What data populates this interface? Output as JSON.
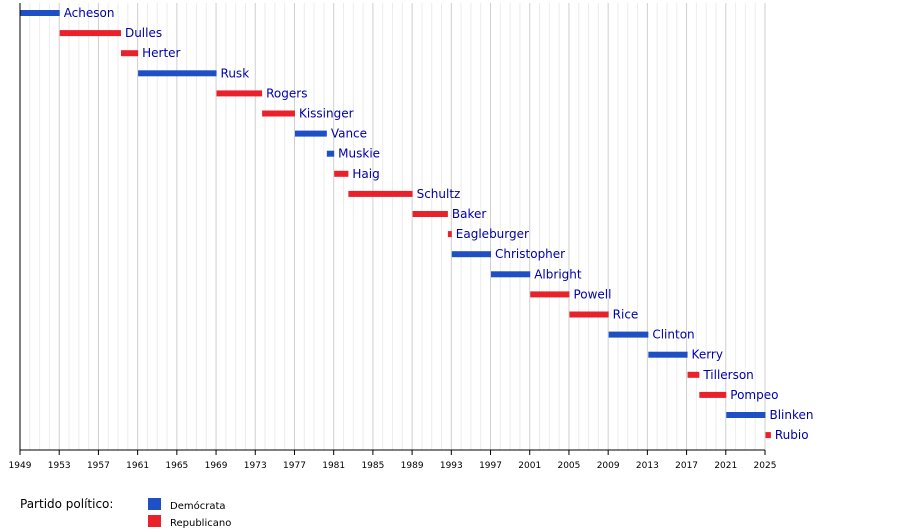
{
  "chart_data": {
    "type": "bar",
    "orientation": "horizontal-timeline",
    "title": "",
    "xlabel": "",
    "ylabel": "",
    "xlim": [
      1949,
      2025
    ],
    "grid": true,
    "legend_position": "bottom-left",
    "x_ticks": [
      "1949",
      "1953",
      "1957",
      "1961",
      "1965",
      "1969",
      "1973",
      "1977",
      "1981",
      "1985",
      "1989",
      "1993",
      "1997",
      "2001",
      "2005",
      "2009",
      "2013",
      "2017",
      "2021",
      "2025"
    ],
    "party_colors": {
      "dem": "#1f4fc4",
      "rep": "#e8212b"
    },
    "legend": {
      "title": "Partido político:",
      "items": [
        {
          "key": "dem",
          "label": "Demócrata"
        },
        {
          "key": "rep",
          "label": "Republicano"
        }
      ]
    },
    "bars": [
      {
        "name": "Acheson",
        "start": 1949.05,
        "end": 1953.05,
        "party": "dem"
      },
      {
        "name": "Dulles",
        "start": 1953.05,
        "end": 1959.3,
        "party": "rep"
      },
      {
        "name": "Herter",
        "start": 1959.3,
        "end": 1961.05,
        "party": "rep"
      },
      {
        "name": "Rusk",
        "start": 1961.05,
        "end": 1969.05,
        "party": "dem"
      },
      {
        "name": "Rogers",
        "start": 1969.05,
        "end": 1973.7,
        "party": "rep"
      },
      {
        "name": "Kissinger",
        "start": 1973.7,
        "end": 1977.05,
        "party": "rep"
      },
      {
        "name": "Vance",
        "start": 1977.05,
        "end": 1980.3,
        "party": "dem"
      },
      {
        "name": "Muskie",
        "start": 1980.3,
        "end": 1981.05,
        "party": "dem"
      },
      {
        "name": "Haig",
        "start": 1981.05,
        "end": 1982.5,
        "party": "rep"
      },
      {
        "name": "Schultz",
        "start": 1982.5,
        "end": 1989.05,
        "party": "rep"
      },
      {
        "name": "Baker",
        "start": 1989.05,
        "end": 1992.65,
        "party": "rep"
      },
      {
        "name": "Eagleburger",
        "start": 1992.65,
        "end": 1993.05,
        "party": "rep"
      },
      {
        "name": "Christopher",
        "start": 1993.05,
        "end": 1997.05,
        "party": "dem"
      },
      {
        "name": "Albright",
        "start": 1997.05,
        "end": 2001.05,
        "party": "dem"
      },
      {
        "name": "Powell",
        "start": 2001.05,
        "end": 2005.05,
        "party": "rep"
      },
      {
        "name": "Rice",
        "start": 2005.05,
        "end": 2009.05,
        "party": "rep"
      },
      {
        "name": "Clinton",
        "start": 2009.05,
        "end": 2013.1,
        "party": "dem"
      },
      {
        "name": "Kerry",
        "start": 2013.1,
        "end": 2017.1,
        "party": "dem"
      },
      {
        "name": "Tillerson",
        "start": 2017.1,
        "end": 2018.3,
        "party": "rep"
      },
      {
        "name": "Pompeo",
        "start": 2018.3,
        "end": 2021.05,
        "party": "rep"
      },
      {
        "name": "Blinken",
        "start": 2021.05,
        "end": 2025.05,
        "party": "dem"
      },
      {
        "name": "Rubio",
        "start": 2025.05,
        "end": 2025.6,
        "party": "rep"
      }
    ]
  }
}
